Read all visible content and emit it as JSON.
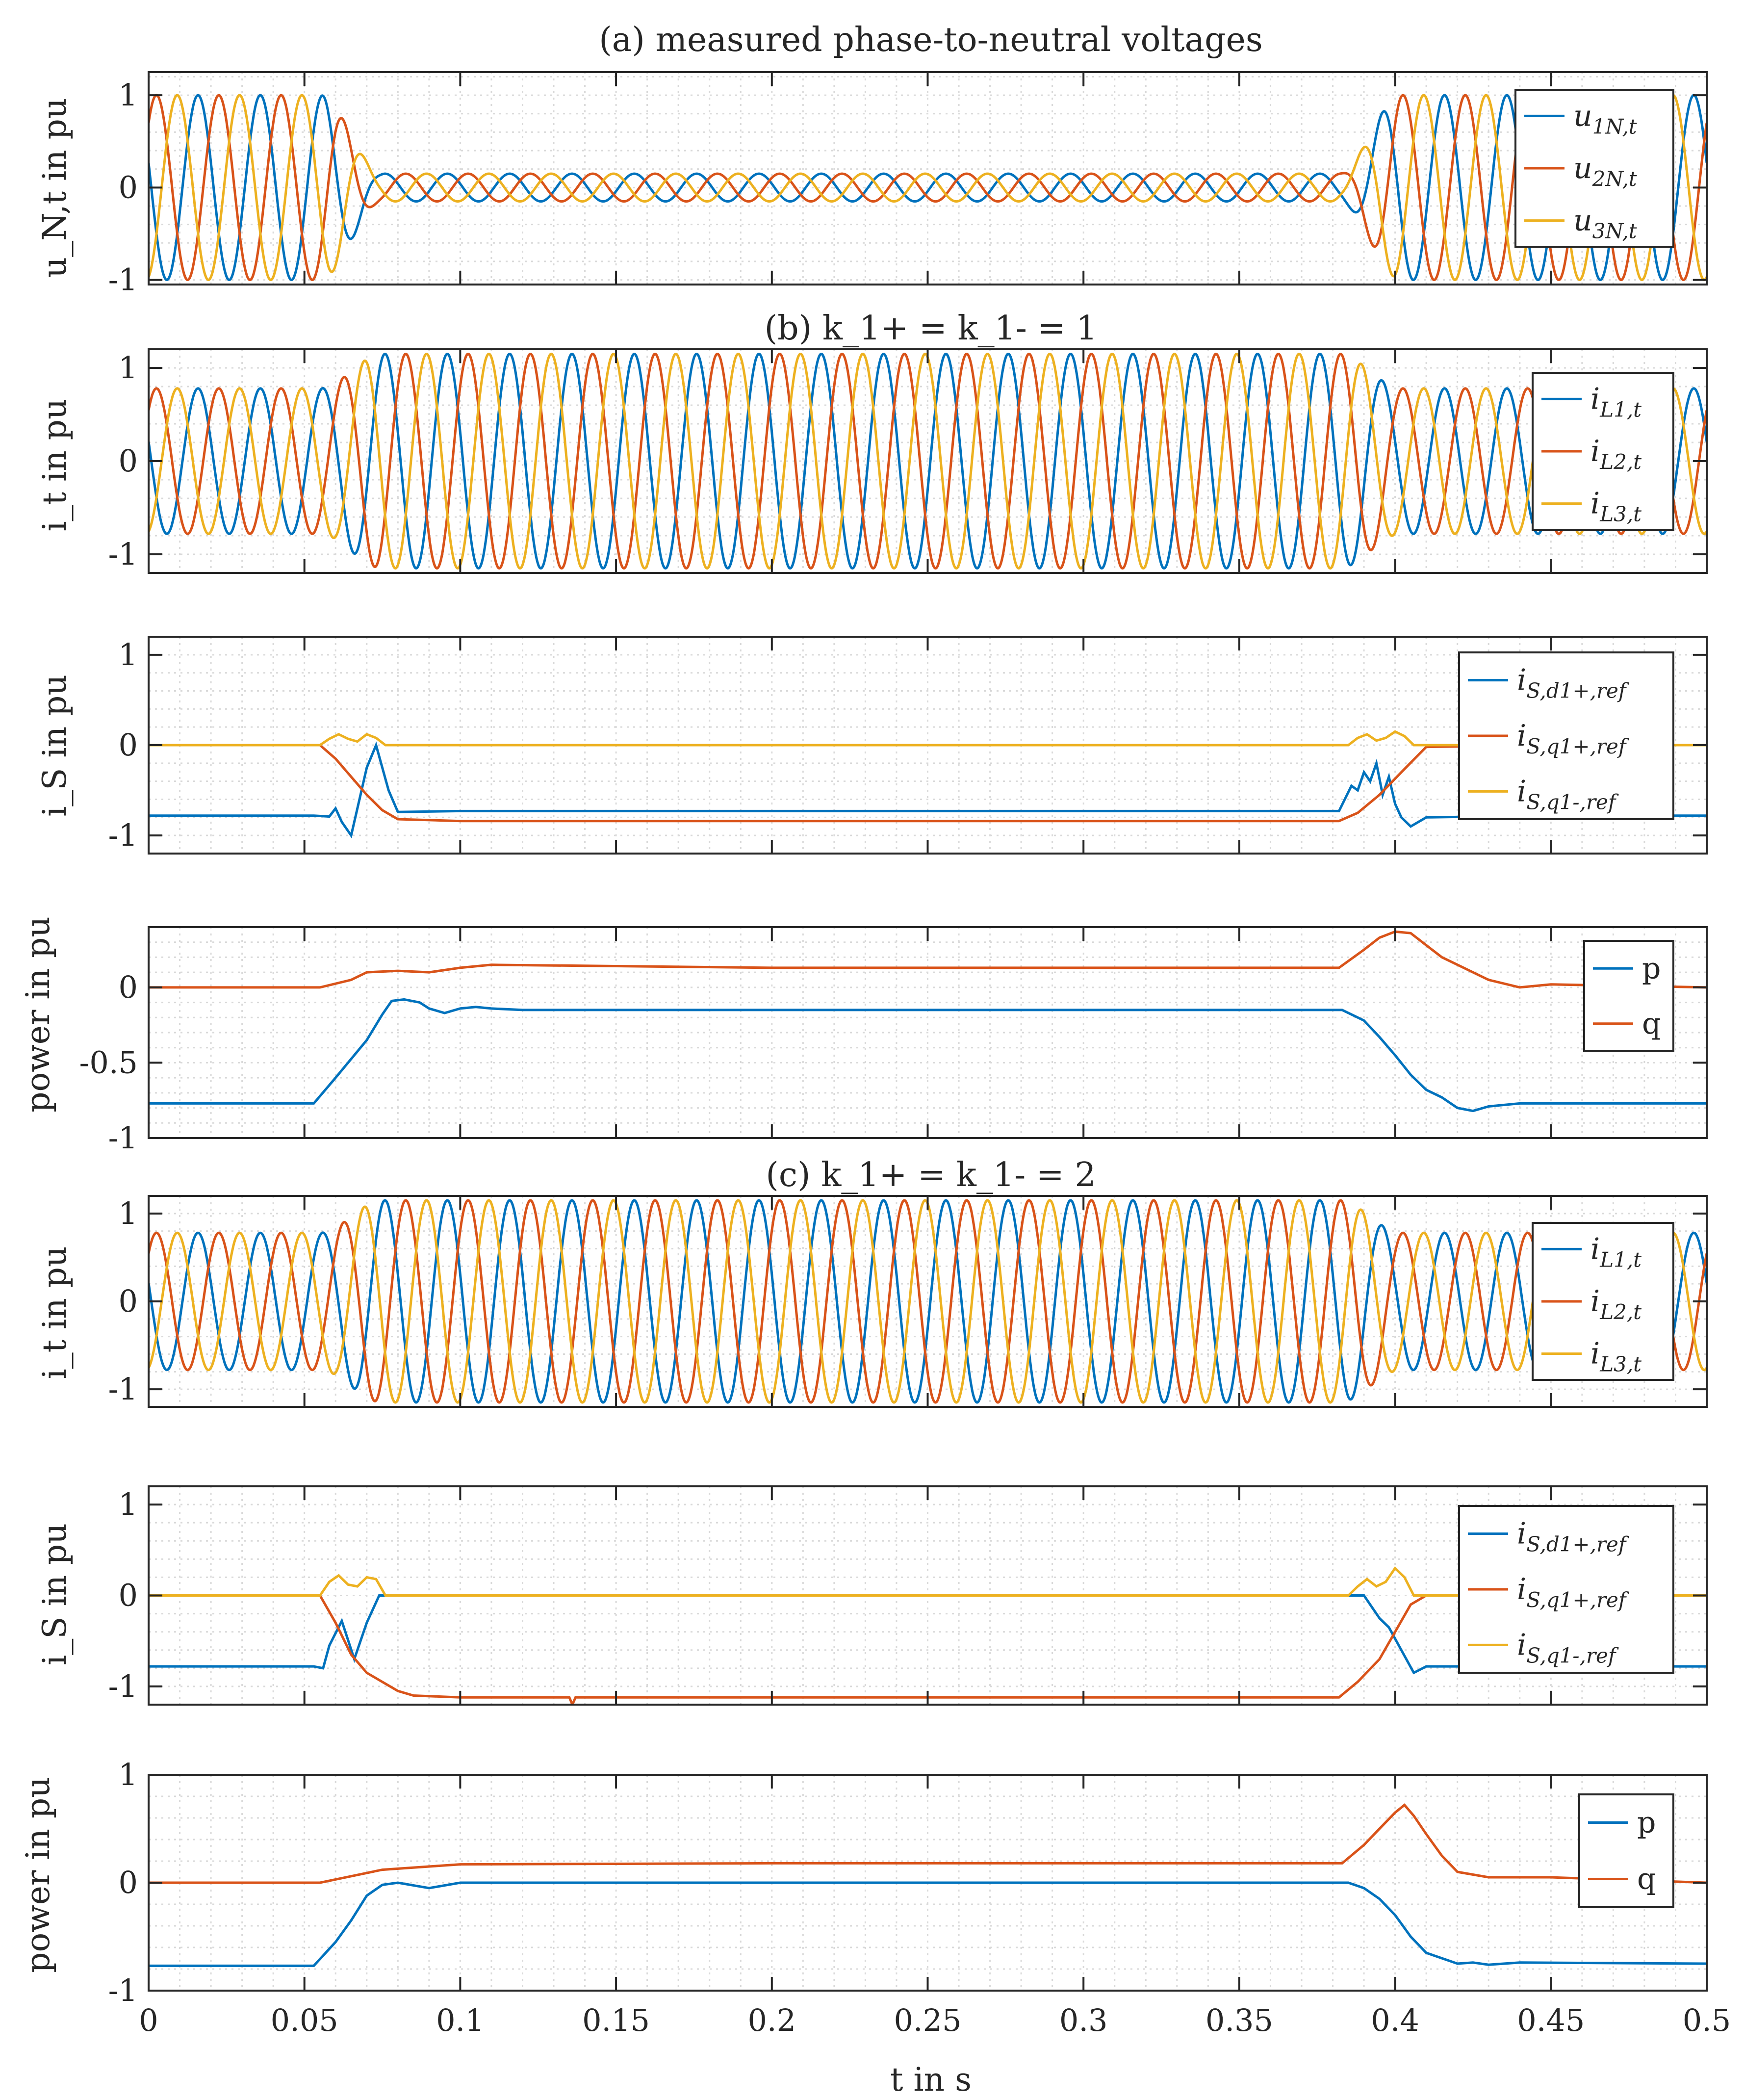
{
  "figure": {
    "xlabel": "t in s",
    "xlim": [
      0,
      0.5
    ],
    "xticks": [
      0,
      0.05,
      0.1,
      0.15,
      0.2,
      0.25,
      0.3,
      0.35,
      0.4,
      0.45,
      0.5
    ],
    "xtick_labels": [
      "0",
      "0.05",
      "0.1",
      "0.15",
      "0.2",
      "0.25",
      "0.3",
      "0.35",
      "0.4",
      "0.45",
      "0.5"
    ],
    "colors": {
      "blue": "#0072BD",
      "red": "#D95319",
      "yellow": "#EDB120",
      "grid": "#d9d9d9",
      "axis": "#262626"
    }
  },
  "chart_data": [
    {
      "id": "a",
      "type": "line",
      "title": "(a) measured phase-to-neutral voltages",
      "ylabel": "u_N,t in pu",
      "ylim": [
        -1.05,
        1.25
      ],
      "yticks": [
        1,
        0,
        -1
      ],
      "ytick_labels": [
        "1",
        "0",
        "-1"
      ],
      "legend": [
        "u_1N,t",
        "u_2N,t",
        "u_3N,t"
      ],
      "legend_position": "top-right",
      "kind": "three-phase",
      "frequency_hz": 50,
      "fault_interval_s": [
        0.055,
        0.382
      ],
      "amplitude_pre_fault": 1.0,
      "amplitude_fault": 0.15,
      "amplitude_post_fault": 1.0
    },
    {
      "id": "b1",
      "type": "line",
      "title": "(b) k_1+ = k_1- = 1",
      "ylabel": "i_t in pu",
      "ylim": [
        -1.2,
        1.2
      ],
      "yticks": [
        1,
        0,
        -1
      ],
      "ytick_labels": [
        "1",
        "0",
        "-1"
      ],
      "legend": [
        "i_L1,t",
        "i_L2,t",
        "i_L3,t"
      ],
      "legend_position": "top-right",
      "kind": "three-phase",
      "frequency_hz": 50,
      "fault_interval_s": [
        0.055,
        0.382
      ],
      "amplitude_pre_fault": 0.78,
      "amplitude_fault": 1.15,
      "amplitude_post_fault": 0.78
    },
    {
      "id": "b2",
      "type": "line",
      "title": "",
      "ylabel": "i_S in pu",
      "ylim": [
        -1.2,
        1.2
      ],
      "yticks": [
        1,
        0,
        -1
      ],
      "ytick_labels": [
        "1",
        "0",
        "-1"
      ],
      "legend": [
        "i_S,d1+,ref",
        "i_S,q1+,ref",
        "i_S,q1-,ref"
      ],
      "legend_position": "right",
      "series": [
        {
          "name": "i_S,d1+,ref",
          "x": [
            0,
            0.053,
            0.058,
            0.06,
            0.062,
            0.065,
            0.068,
            0.07,
            0.073,
            0.077,
            0.08,
            0.1,
            0.2,
            0.3,
            0.382,
            0.386,
            0.388,
            0.39,
            0.392,
            0.394,
            0.396,
            0.398,
            0.4,
            0.402,
            0.405,
            0.41,
            0.45,
            0.5
          ],
          "values": [
            -0.78,
            -0.78,
            -0.79,
            -0.7,
            -0.85,
            -1.0,
            -0.55,
            -0.25,
            0,
            -0.5,
            -0.74,
            -0.73,
            -0.73,
            -0.73,
            -0.73,
            -0.45,
            -0.5,
            -0.3,
            -0.4,
            -0.2,
            -0.55,
            -0.35,
            -0.65,
            -0.8,
            -0.9,
            -0.8,
            -0.78,
            -0.78
          ]
        },
        {
          "name": "i_S,q1+,ref",
          "x": [
            0,
            0.055,
            0.06,
            0.065,
            0.07,
            0.075,
            0.08,
            0.1,
            0.2,
            0.3,
            0.382,
            0.388,
            0.395,
            0.402,
            0.41,
            0.45,
            0.5
          ],
          "values": [
            0,
            0,
            -0.15,
            -0.35,
            -0.55,
            -0.72,
            -0.82,
            -0.84,
            -0.84,
            -0.84,
            -0.84,
            -0.75,
            -0.55,
            -0.3,
            -0.02,
            0,
            0
          ]
        },
        {
          "name": "i_S,q1-,ref",
          "x": [
            0,
            0.055,
            0.058,
            0.061,
            0.064,
            0.067,
            0.07,
            0.073,
            0.076,
            0.2,
            0.385,
            0.388,
            0.391,
            0.394,
            0.397,
            0.4,
            0.403,
            0.406,
            0.5
          ],
          "values": [
            0,
            0,
            0.07,
            0.12,
            0.07,
            0.04,
            0.12,
            0.08,
            0,
            0,
            0,
            0.08,
            0.12,
            0.05,
            0.08,
            0.15,
            0.1,
            0,
            0
          ]
        }
      ]
    },
    {
      "id": "b3",
      "type": "line",
      "title": "",
      "ylabel": "power in pu",
      "ylim": [
        -1,
        0.4
      ],
      "yticks": [
        0,
        -0.5,
        -1
      ],
      "ytick_labels": [
        "0",
        "-0.5",
        "-1"
      ],
      "legend": [
        "p",
        "q"
      ],
      "legend_position": "right",
      "series": [
        {
          "name": "p",
          "x": [
            0,
            0.053,
            0.06,
            0.07,
            0.075,
            0.078,
            0.082,
            0.087,
            0.09,
            0.095,
            0.1,
            0.105,
            0.11,
            0.12,
            0.2,
            0.3,
            0.383,
            0.39,
            0.395,
            0.4,
            0.405,
            0.41,
            0.415,
            0.42,
            0.425,
            0.43,
            0.44,
            0.5
          ],
          "values": [
            -0.77,
            -0.77,
            -0.6,
            -0.35,
            -0.18,
            -0.09,
            -0.08,
            -0.1,
            -0.14,
            -0.17,
            -0.14,
            -0.13,
            -0.14,
            -0.15,
            -0.15,
            -0.15,
            -0.15,
            -0.22,
            -0.33,
            -0.45,
            -0.58,
            -0.68,
            -0.73,
            -0.8,
            -0.82,
            -0.79,
            -0.77,
            -0.77
          ]
        },
        {
          "name": "q",
          "x": [
            0,
            0.055,
            0.065,
            0.07,
            0.08,
            0.09,
            0.1,
            0.11,
            0.2,
            0.3,
            0.382,
            0.39,
            0.395,
            0.4,
            0.405,
            0.41,
            0.415,
            0.42,
            0.425,
            0.43,
            0.44,
            0.45,
            0.5
          ],
          "values": [
            0,
            0,
            0.05,
            0.1,
            0.11,
            0.1,
            0.13,
            0.15,
            0.13,
            0.13,
            0.13,
            0.25,
            0.33,
            0.37,
            0.36,
            0.28,
            0.2,
            0.15,
            0.1,
            0.05,
            0,
            0.02,
            0
          ]
        }
      ]
    },
    {
      "id": "c1",
      "type": "line",
      "title": "(c) k_1+ = k_1- = 2",
      "ylabel": "i_t in pu",
      "ylim": [
        -1.2,
        1.2
      ],
      "yticks": [
        1,
        0,
        -1
      ],
      "ytick_labels": [
        "1",
        "0",
        "-1"
      ],
      "legend": [
        "i_L1,t",
        "i_L2,t",
        "i_L3,t"
      ],
      "legend_position": "top-right",
      "kind": "three-phase",
      "frequency_hz": 50,
      "fault_interval_s": [
        0.055,
        0.382
      ],
      "amplitude_pre_fault": 0.78,
      "amplitude_fault": 1.15,
      "amplitude_post_fault": 0.78
    },
    {
      "id": "c2",
      "type": "line",
      "title": "",
      "ylabel": "i_S in pu",
      "ylim": [
        -1.2,
        1.2
      ],
      "yticks": [
        1,
        0,
        -1
      ],
      "ytick_labels": [
        "1",
        "0",
        "-1"
      ],
      "legend": [
        "i_S,d1+,ref",
        "i_S,q1+,ref",
        "i_S,q1-,ref"
      ],
      "legend_position": "right",
      "series": [
        {
          "name": "i_S,d1+,ref",
          "x": [
            0,
            0.053,
            0.056,
            0.058,
            0.062,
            0.066,
            0.07,
            0.074,
            0.08,
            0.2,
            0.3,
            0.385,
            0.39,
            0.395,
            0.398,
            0.402,
            0.406,
            0.41,
            0.45,
            0.5
          ],
          "values": [
            -0.78,
            -0.78,
            -0.8,
            -0.55,
            -0.28,
            -0.7,
            -0.3,
            0,
            0,
            0,
            0,
            0,
            0,
            -0.25,
            -0.35,
            -0.6,
            -0.85,
            -0.78,
            -0.78,
            -0.78
          ]
        },
        {
          "name": "i_S,q1+,ref",
          "x": [
            0,
            0.055,
            0.06,
            0.065,
            0.07,
            0.075,
            0.08,
            0.085,
            0.1,
            0.135,
            0.136,
            0.137,
            0.2,
            0.3,
            0.382,
            0.388,
            0.395,
            0.4,
            0.405,
            0.41,
            0.45,
            0.5
          ],
          "values": [
            0,
            0,
            -0.3,
            -0.65,
            -0.85,
            -0.95,
            -1.05,
            -1.1,
            -1.12,
            -1.12,
            -1.2,
            -1.12,
            -1.12,
            -1.12,
            -1.12,
            -0.95,
            -0.7,
            -0.4,
            -0.1,
            0,
            0,
            0
          ]
        },
        {
          "name": "i_S,q1-,ref",
          "x": [
            0,
            0.055,
            0.058,
            0.061,
            0.064,
            0.067,
            0.07,
            0.073,
            0.076,
            0.2,
            0.385,
            0.388,
            0.391,
            0.394,
            0.397,
            0.4,
            0.403,
            0.406,
            0.5
          ],
          "values": [
            0,
            0,
            0.15,
            0.22,
            0.12,
            0.1,
            0.2,
            0.18,
            0,
            0,
            0,
            0.1,
            0.18,
            0.1,
            0.15,
            0.3,
            0.2,
            0,
            0
          ]
        }
      ]
    },
    {
      "id": "c3",
      "type": "line",
      "title": "",
      "ylabel": "power in pu",
      "ylim": [
        -1,
        1
      ],
      "yticks": [
        1,
        0,
        -1
      ],
      "ytick_labels": [
        "1",
        "0",
        "-1"
      ],
      "legend": [
        "p",
        "q"
      ],
      "legend_position": "right",
      "series": [
        {
          "name": "p",
          "x": [
            0,
            0.053,
            0.06,
            0.065,
            0.07,
            0.075,
            0.08,
            0.09,
            0.1,
            0.11,
            0.2,
            0.3,
            0.385,
            0.39,
            0.395,
            0.4,
            0.405,
            0.41,
            0.415,
            0.42,
            0.425,
            0.43,
            0.44,
            0.5
          ],
          "values": [
            -0.77,
            -0.77,
            -0.55,
            -0.35,
            -0.12,
            -0.02,
            0,
            -0.05,
            0,
            0,
            0,
            0,
            0,
            -0.05,
            -0.15,
            -0.3,
            -0.5,
            -0.65,
            -0.7,
            -0.75,
            -0.74,
            -0.76,
            -0.74,
            -0.75
          ]
        },
        {
          "name": "q",
          "x": [
            0,
            0.055,
            0.065,
            0.075,
            0.09,
            0.1,
            0.2,
            0.3,
            0.383,
            0.39,
            0.395,
            0.4,
            0.403,
            0.406,
            0.41,
            0.415,
            0.42,
            0.43,
            0.45,
            0.5
          ],
          "values": [
            0,
            0,
            0.06,
            0.12,
            0.15,
            0.17,
            0.18,
            0.18,
            0.18,
            0.35,
            0.5,
            0.65,
            0.72,
            0.62,
            0.45,
            0.25,
            0.1,
            0.05,
            0.05,
            0
          ]
        }
      ]
    }
  ]
}
